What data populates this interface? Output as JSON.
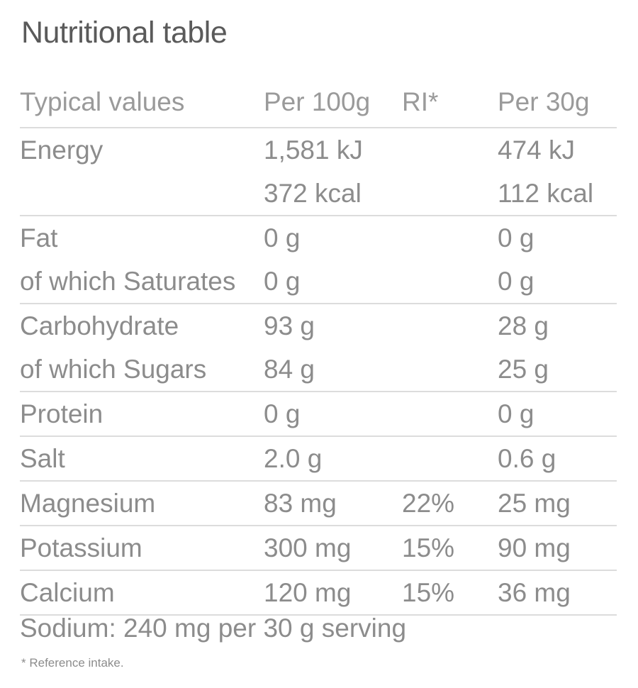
{
  "title": "Nutritional table",
  "header": [
    "Typical values",
    "Per 100g",
    "RI*",
    "Per 30g"
  ],
  "groups": [
    {
      "lines": [
        [
          "Energy",
          "1,581 kJ",
          "",
          "474 kJ"
        ],
        [
          "",
          "372 kcal",
          "",
          "112 kcal"
        ]
      ]
    },
    {
      "lines": [
        [
          "Fat",
          "0 g",
          "",
          "0 g"
        ],
        [
          "of which Saturates",
          "0 g",
          "",
          "0 g"
        ]
      ]
    },
    {
      "lines": [
        [
          "Carbohydrate",
          "93 g",
          "",
          "28 g"
        ],
        [
          "of which Sugars",
          "84 g",
          "",
          "25 g"
        ]
      ]
    },
    {
      "lines": [
        [
          "Protein",
          "0 g",
          "",
          "0 g"
        ]
      ]
    },
    {
      "lines": [
        [
          "Salt",
          "2.0 g",
          "",
          "0.6 g"
        ]
      ]
    },
    {
      "lines": [
        [
          "Magnesium",
          "83 mg",
          "22%",
          "25 mg"
        ]
      ]
    },
    {
      "lines": [
        [
          "Potassium",
          "300 mg",
          "15%",
          "90 mg"
        ]
      ]
    },
    {
      "lines": [
        [
          "Calcium",
          "120 mg",
          "15%",
          "36 mg"
        ]
      ]
    }
  ],
  "sodium_note": "Sodium: 240 mg per 30 g serving",
  "footnote": "* Reference intake."
}
